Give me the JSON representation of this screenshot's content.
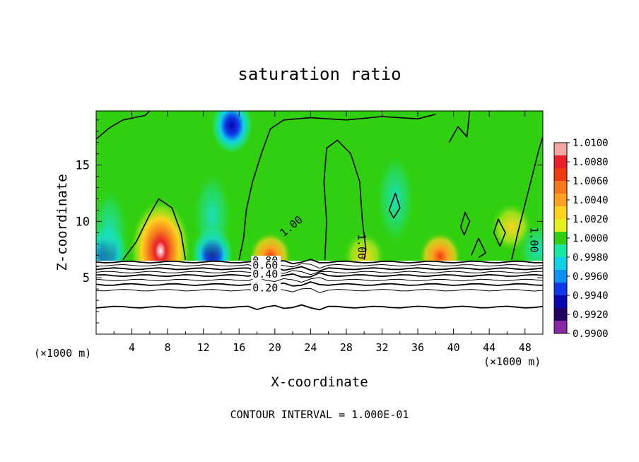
{
  "chart_data": {
    "type": "heatmap",
    "title": "saturation ratio",
    "xlabel": "X-coordinate",
    "ylabel": "Z-coordinate",
    "x_unit_left": "(×1000 m)",
    "x_unit_right": "(×1000 m)",
    "footer": "CONTOUR INTERVAL = 1.000E-01",
    "xlim": [
      0,
      50
    ],
    "ylim": [
      0,
      19.8
    ],
    "x_ticks": [
      4,
      8,
      12,
      16,
      20,
      24,
      28,
      32,
      36,
      40,
      44,
      48
    ],
    "y_ticks": [
      5,
      10,
      15
    ],
    "colorbar": {
      "min": 0.99,
      "max": 1.01,
      "labels": [
        "1.0100",
        "1.0080",
        "1.0060",
        "1.0040",
        "1.0020",
        "1.0000",
        "0.9980",
        "0.9960",
        "0.9940",
        "0.9920",
        "0.9900"
      ],
      "colors": [
        "#f4a6a6",
        "#e8202a",
        "#f03c10",
        "#f5781e",
        "#ffa020",
        "#ffd21e",
        "#e6f020",
        "#30d010",
        "#18e8a0",
        "#10d0e8",
        "#1090f0",
        "#1038e8",
        "#0808b0",
        "#200060",
        "#8828a8"
      ]
    },
    "saturated_layer_base_z": 6.5,
    "contour_labels": [
      {
        "text": "1.00",
        "x": 21.0,
        "z": 8.6
      },
      {
        "text": "1.00",
        "x": 29.3,
        "z": 8.9
      },
      {
        "text": "1.00",
        "x": 48.6,
        "z": 9.5
      },
      {
        "text": "0.80",
        "x": 17.5,
        "z": 6.2
      },
      {
        "text": "0.60",
        "x": 17.5,
        "z": 5.8
      },
      {
        "text": "0.40",
        "x": 17.5,
        "z": 5.0
      },
      {
        "text": "0.20",
        "x": 17.5,
        "z": 3.8
      }
    ],
    "subsaturated_contours": [
      {
        "value": 0.9,
        "z": 6.4
      },
      {
        "value": 0.8,
        "z": 6.1
      },
      {
        "value": 0.7,
        "z": 5.8
      },
      {
        "value": 0.6,
        "z": 5.5
      },
      {
        "value": 0.5,
        "z": 5.2
      },
      {
        "value": 0.4,
        "z": 4.8
      },
      {
        "value": 0.3,
        "z": 4.4
      },
      {
        "value": 0.2,
        "z": 3.9
      },
      {
        "value": 0.1,
        "z": 2.4
      }
    ],
    "anomalies": [
      {
        "kind": "high",
        "x": 7.2,
        "z": 7.4,
        "peak": 1.01
      },
      {
        "kind": "high",
        "x": 19.5,
        "z": 6.9,
        "peak": 1.006
      },
      {
        "kind": "high",
        "x": 30.0,
        "z": 6.9,
        "peak": 1.005
      },
      {
        "kind": "high",
        "x": 38.5,
        "z": 6.9,
        "peak": 1.007
      },
      {
        "kind": "high",
        "x": 46.5,
        "z": 9.5,
        "peak": 1.003
      },
      {
        "kind": "low",
        "x": 1.2,
        "z": 7.2,
        "peak": 0.992
      },
      {
        "kind": "low",
        "x": 13.0,
        "z": 7.1,
        "peak": 0.992
      },
      {
        "kind": "low",
        "x": 15.2,
        "z": 18.5,
        "peak": 0.99
      },
      {
        "kind": "low",
        "x": 49.5,
        "z": 7.5,
        "peak": 0.995
      }
    ]
  }
}
